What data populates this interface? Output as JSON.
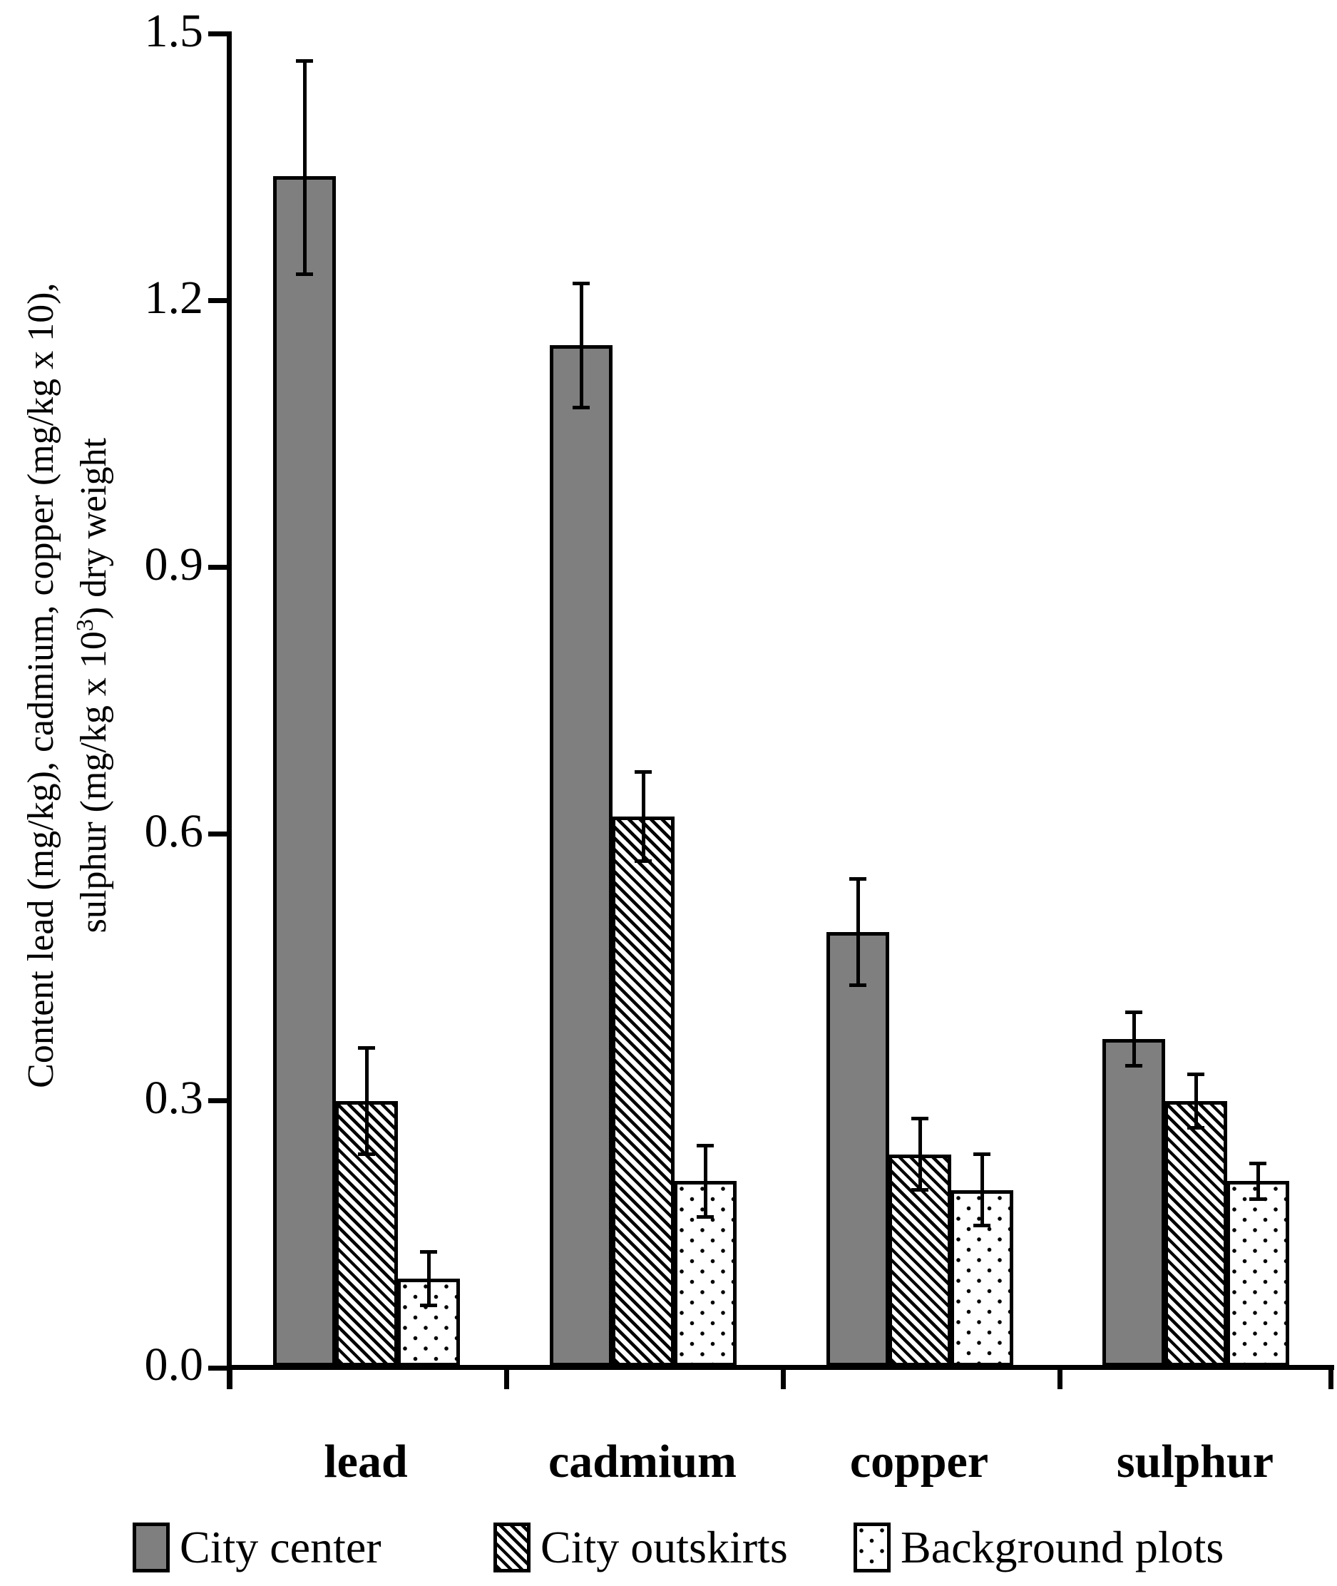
{
  "figure_title": "",
  "chart_data": {
    "type": "bar",
    "categories": [
      "lead",
      "cadmium",
      "copper",
      "sulphur"
    ],
    "series": [
      {
        "name": "City center",
        "pattern": "solid-gray",
        "values": [
          1.34,
          1.15,
          0.49,
          0.37
        ],
        "err_low": [
          1.23,
          1.08,
          0.43,
          0.34
        ],
        "err_high": [
          1.47,
          1.22,
          0.55,
          0.4
        ]
      },
      {
        "name": "City outskirts",
        "pattern": "diagonal-hatch",
        "values": [
          0.3,
          0.62,
          0.24,
          0.3
        ],
        "err_low": [
          0.24,
          0.57,
          0.2,
          0.27
        ],
        "err_high": [
          0.36,
          0.67,
          0.28,
          0.33
        ]
      },
      {
        "name": "Background plots",
        "pattern": "dots",
        "values": [
          0.1,
          0.21,
          0.2,
          0.21
        ],
        "err_low": [
          0.07,
          0.17,
          0.16,
          0.19
        ],
        "err_high": [
          0.13,
          0.25,
          0.24,
          0.23
        ]
      }
    ],
    "ylabel_line1": "Content  lead (mg/kg),  cadmium,  copper (mg/kg x 10),",
    "ylabel_line2_pre": "sulphur (mg/kg x 10",
    "ylabel_line2_sup": "3",
    "ylabel_line2_post": ")  dry  weight",
    "xlabel": "",
    "yticks": [
      "0.0",
      "0.3",
      "0.6",
      "0.9",
      "1.2",
      "1.5"
    ],
    "ytick_values": [
      0,
      0.3,
      0.6,
      0.9,
      1.2,
      1.5
    ],
    "ylim": [
      0,
      1.5
    ],
    "grid": false,
    "error_bars": true,
    "legend_position": "bottom",
    "colors": {
      "bar_gray": "#7f7f7f",
      "ink": "#000000",
      "background": "#ffffff"
    }
  }
}
